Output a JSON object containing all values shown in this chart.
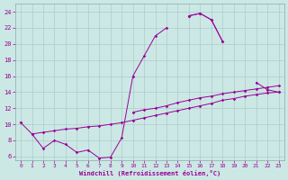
{
  "x_values": [
    0,
    1,
    2,
    3,
    4,
    5,
    6,
    7,
    8,
    9,
    10,
    11,
    12,
    13,
    14,
    15,
    16,
    17,
    18,
    19,
    20,
    21,
    22,
    23
  ],
  "line1_y": [
    10.2,
    8.8,
    7.0,
    8.0,
    7.5,
    6.5,
    6.8,
    5.8,
    5.9,
    8.3,
    16.0,
    18.5,
    21.0,
    22.0,
    null,
    23.5,
    23.8,
    23.0,
    20.3,
    null,
    null,
    null,
    null,
    null
  ],
  "line2_y": [
    null,
    null,
    null,
    null,
    null,
    null,
    null,
    null,
    null,
    null,
    null,
    null,
    null,
    null,
    null,
    23.5,
    23.8,
    23.0,
    20.3,
    null,
    null,
    15.2,
    14.3,
    14.0
  ],
  "line3_y": [
    10.2,
    null,
    null,
    null,
    null,
    null,
    null,
    null,
    null,
    null,
    11.5,
    11.8,
    12.0,
    12.3,
    12.7,
    13.0,
    13.3,
    13.5,
    13.8,
    14.0,
    14.2,
    14.4,
    14.6,
    14.8
  ],
  "line4_y": [
    null,
    8.8,
    9.0,
    9.2,
    9.4,
    9.5,
    9.7,
    9.8,
    10.0,
    10.2,
    10.5,
    10.8,
    11.1,
    11.4,
    11.7,
    12.0,
    12.3,
    12.6,
    13.0,
    13.2,
    13.5,
    13.7,
    13.9,
    14.0
  ],
  "bg_color": "#cce8e4",
  "line_color": "#990099",
  "grid_color": "#aacccc",
  "xlabel": "Windchill (Refroidissement éolien,°C)",
  "xlim": [
    -0.5,
    23.5
  ],
  "ylim": [
    5.5,
    25.0
  ],
  "yticks": [
    6,
    8,
    10,
    12,
    14,
    16,
    18,
    20,
    22,
    24
  ],
  "xticks": [
    0,
    1,
    2,
    3,
    4,
    5,
    6,
    7,
    8,
    9,
    10,
    11,
    12,
    13,
    14,
    15,
    16,
    17,
    18,
    19,
    20,
    21,
    22,
    23
  ]
}
